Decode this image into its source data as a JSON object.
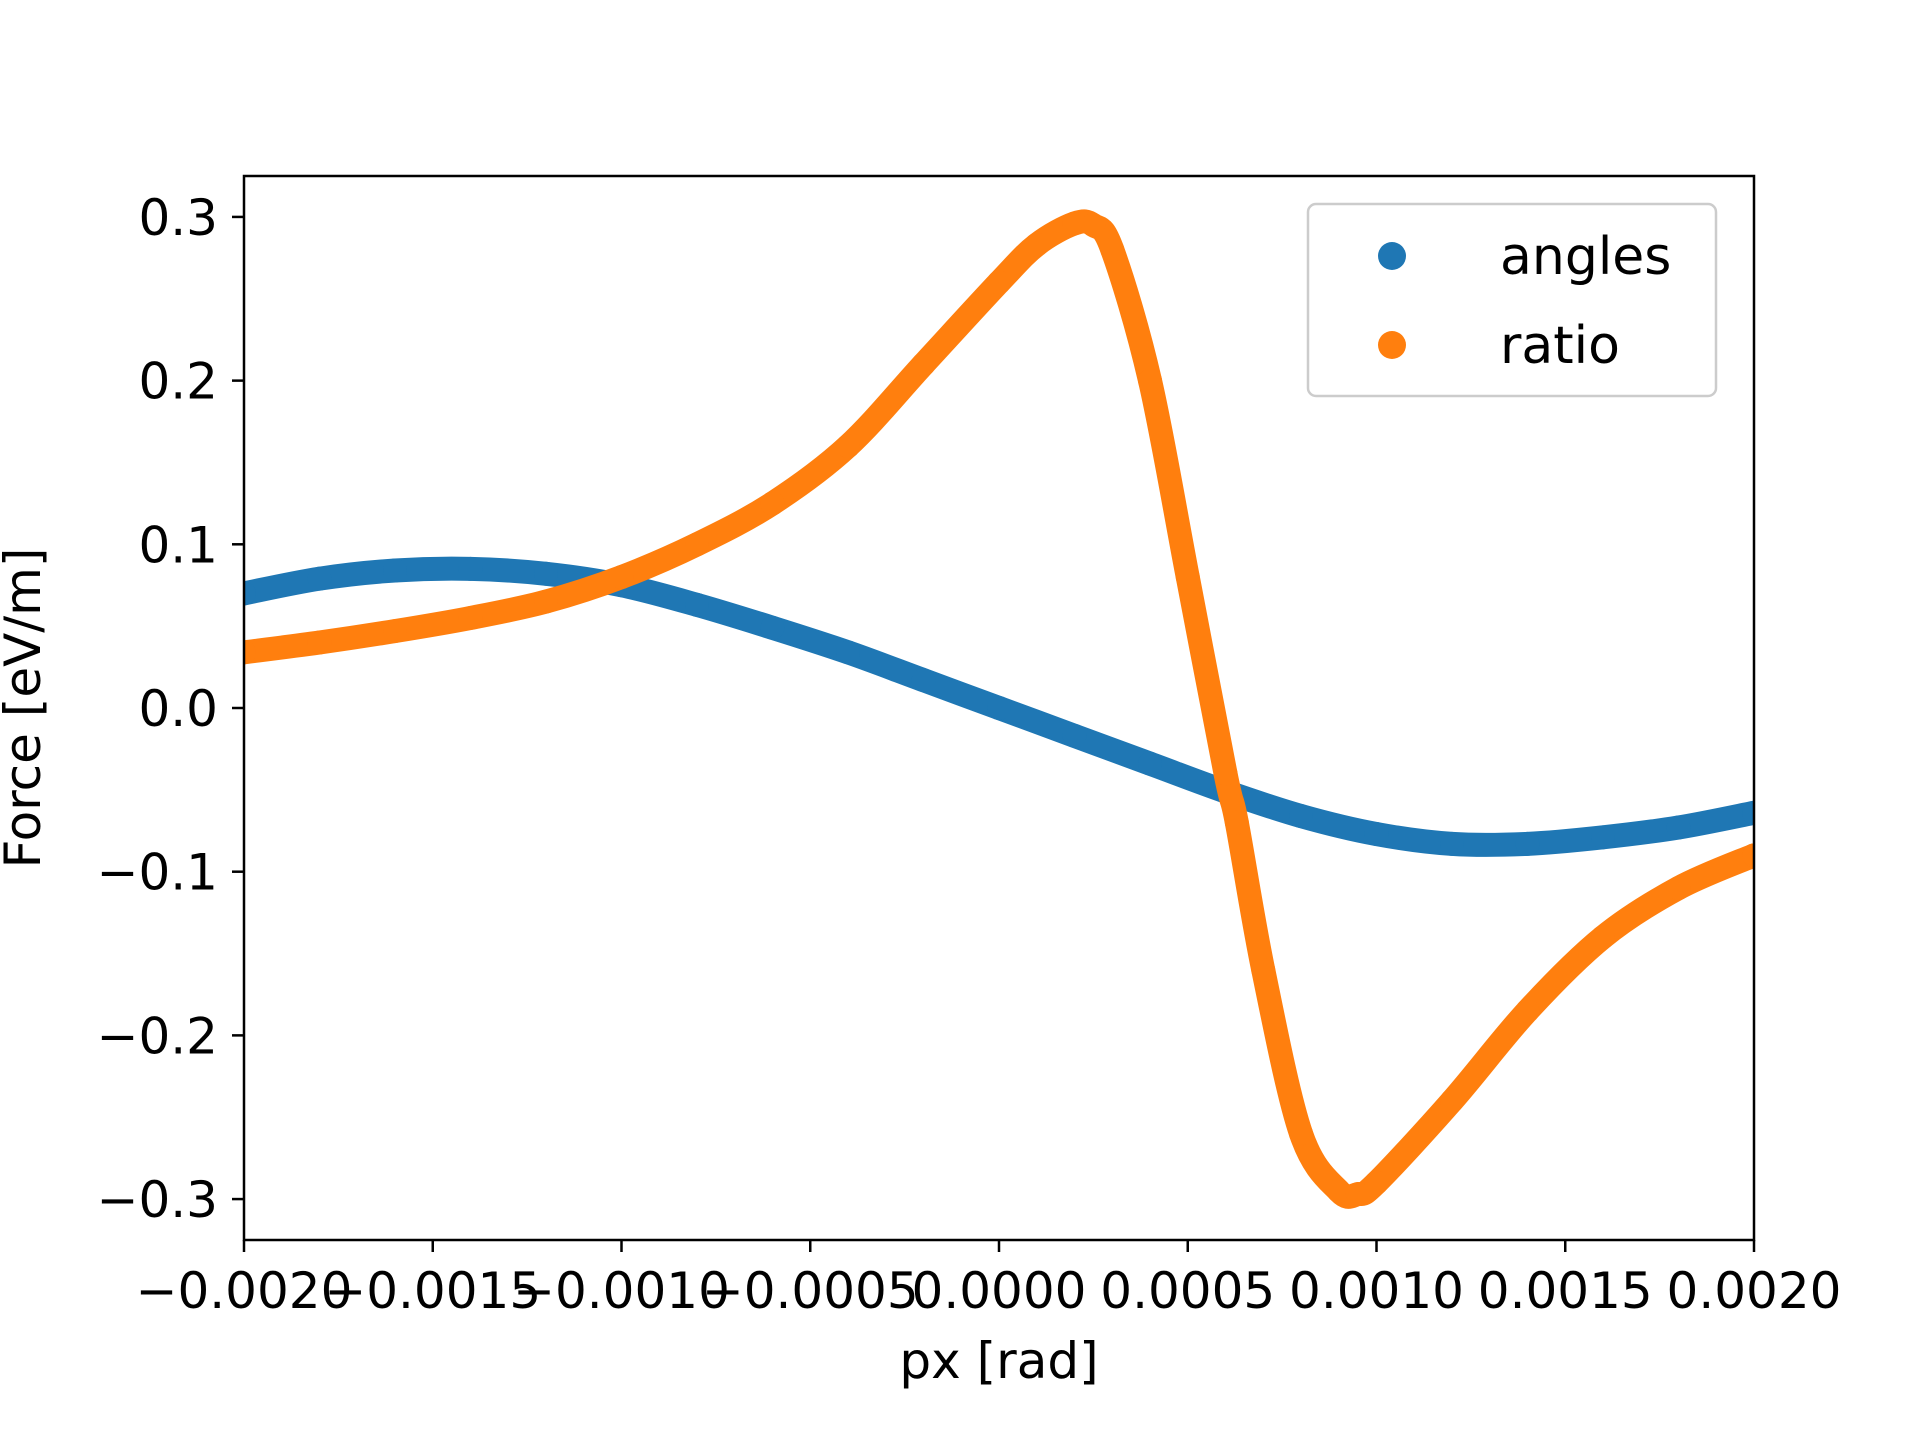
{
  "chart_data": {
    "type": "scatter",
    "xlabel": "px [rad]",
    "ylabel": "Force [eV/m]",
    "xlim": [
      -0.002,
      0.002
    ],
    "ylim": [
      -0.325,
      0.325
    ],
    "x_ticks": [
      -0.002,
      -0.0015,
      -0.001,
      -0.0005,
      0.0,
      0.0005,
      0.001,
      0.0015,
      0.002
    ],
    "x_tick_labels": [
      "−0.0020",
      "−0.0015",
      "−0.0010",
      "−0.0005",
      "0.0000",
      "0.0005",
      "0.0010",
      "0.0015",
      "0.0020"
    ],
    "y_ticks": [
      0.3,
      0.2,
      0.1,
      0.0,
      -0.1,
      -0.2,
      -0.3
    ],
    "y_tick_labels": [
      "0.3",
      "0.2",
      "0.1",
      "0.0",
      "−0.1",
      "−0.2",
      "−0.3"
    ],
    "legend_position": "top-right",
    "grid": false,
    "series": [
      {
        "name": "angles",
        "color": "#1f77b4",
        "x": [
          -0.002,
          -0.0018,
          -0.0016,
          -0.0014,
          -0.0012,
          -0.001,
          -0.0008,
          -0.0006,
          -0.0004,
          -0.0002,
          0.0,
          0.0002,
          0.0004,
          0.0006,
          0.0008,
          0.001,
          0.0012,
          0.0014,
          0.0016,
          0.0018,
          0.002
        ],
        "y": [
          0.07,
          0.079,
          0.084,
          0.085,
          0.082,
          0.075,
          0.063,
          0.049,
          0.034,
          0.017,
          0.0,
          -0.017,
          -0.034,
          -0.051,
          -0.066,
          -0.077,
          -0.083,
          -0.083,
          -0.079,
          -0.073,
          -0.064
        ]
      },
      {
        "name": "ratio",
        "color": "#ff7f0e",
        "x": [
          -0.002,
          -0.0018,
          -0.0016,
          -0.0014,
          -0.0012,
          -0.001,
          -0.0008,
          -0.0006,
          -0.0004,
          -0.0002,
          0.0,
          0.0001,
          0.0002,
          0.00025,
          0.0003,
          0.0004,
          0.0005,
          0.0006,
          0.00063,
          0.0007,
          0.0008,
          0.0009,
          0.00095,
          0.001,
          0.0012,
          0.0014,
          0.0016,
          0.0018,
          0.002
        ],
        "y": [
          0.034,
          0.04,
          0.047,
          0.055,
          0.065,
          0.08,
          0.1,
          0.125,
          0.16,
          0.21,
          0.26,
          0.283,
          0.296,
          0.295,
          0.28,
          0.2,
          0.08,
          -0.04,
          -0.07,
          -0.16,
          -0.26,
          -0.295,
          -0.297,
          -0.29,
          -0.24,
          -0.185,
          -0.14,
          -0.11,
          -0.09
        ]
      }
    ]
  }
}
